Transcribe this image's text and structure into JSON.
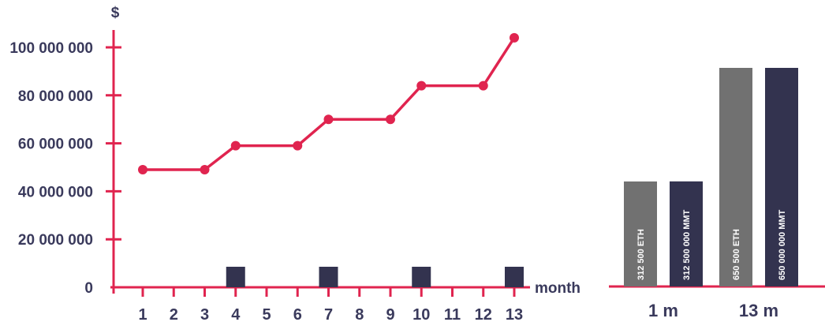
{
  "chart_data": [
    {
      "type": "line",
      "ylabel": "$",
      "xlabel": "month",
      "x": [
        1,
        2,
        3,
        4,
        5,
        6,
        7,
        8,
        9,
        10,
        11,
        12,
        13
      ],
      "y_ticks": [
        "0",
        "20 000 000",
        "40 000 000",
        "60 000 000",
        "80 000 000",
        "100 000 000"
      ],
      "ylim": [
        0,
        100000000
      ],
      "line_points": [
        {
          "x": 1,
          "y": 49000000
        },
        {
          "x": 3,
          "y": 49000000
        },
        {
          "x": 4,
          "y": 59000000
        },
        {
          "x": 6,
          "y": 59000000
        },
        {
          "x": 7,
          "y": 70000000
        },
        {
          "x": 9,
          "y": 70000000
        },
        {
          "x": 10,
          "y": 84000000
        },
        {
          "x": 12,
          "y": 84000000
        },
        {
          "x": 13,
          "y": 104000000
        }
      ],
      "markers": [
        4,
        7,
        10,
        13
      ],
      "colors": {
        "line": "#e0244f",
        "axis": "#e0244f",
        "marker": "#33334f",
        "text": "#3a3a5c"
      }
    },
    {
      "type": "bar",
      "categories": [
        "1 m",
        "13 m"
      ],
      "series": [
        {
          "labels": [
            "312 500 ETH",
            "650 500 ETH"
          ],
          "values": [
            312500,
            650500
          ],
          "color": "#717171"
        },
        {
          "labels": [
            "312 500 000 MMT",
            "650 000 000 MMT"
          ],
          "values": [
            312500000,
            650000000
          ],
          "color": "#33334f"
        }
      ],
      "colors": {
        "axis": "#e0244f",
        "text": "#3a3a5c"
      }
    }
  ]
}
